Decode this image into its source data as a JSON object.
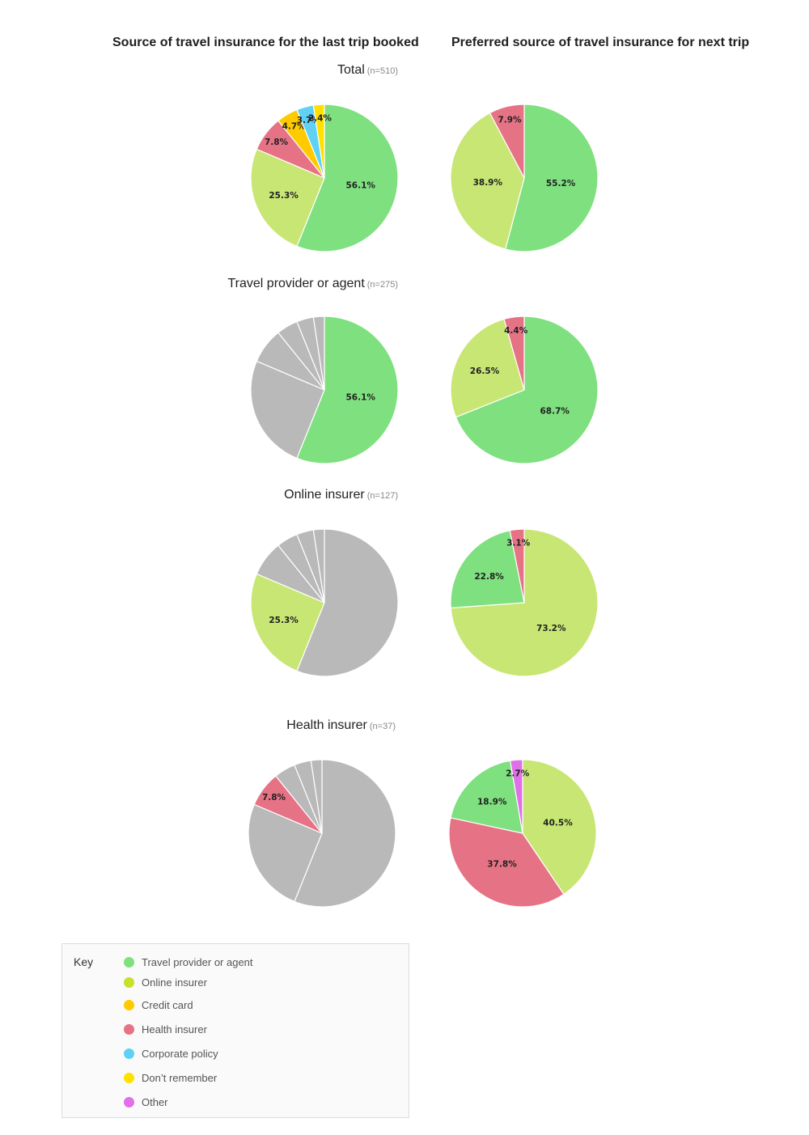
{
  "titles": {
    "left": "Source of travel insurance for the last trip booked",
    "right": "Preferred source of travel insurance for next trip"
  },
  "colors": {
    "travel_provider": "#7ee07e",
    "online_insurer": "#c8e673",
    "credit_card": "#ffcb00",
    "health_insurer": "#e67385",
    "corporate_policy": "#5fd1f5",
    "dont_remember": "#ffe100",
    "other": "#e070e8",
    "inactive": "#b9b9b9"
  },
  "groups": [
    {
      "label": "Total",
      "n": "(n=510)"
    },
    {
      "label": "Travel provider or agent",
      "n": "(n=275)"
    },
    {
      "label": "Online insurer",
      "n": "(n=127)"
    },
    {
      "label": "Health insurer",
      "n": "(n=37)"
    }
  ],
  "chart_data": [
    {
      "type": "pie",
      "chart": "Total - last trip",
      "slices": [
        {
          "category": "Travel provider or agent",
          "value": 56.1,
          "label": "56.1%",
          "color": "#7ee07e"
        },
        {
          "category": "Online insurer",
          "value": 25.3,
          "label": "25.3%",
          "color": "#c8e673"
        },
        {
          "category": "Health insurer",
          "value": 7.8,
          "label": "7.8%",
          "color": "#e67385"
        },
        {
          "category": "Credit card",
          "value": 4.7,
          "label": "4.7%",
          "color": "#ffcb00"
        },
        {
          "category": "Corporate policy",
          "value": 3.7,
          "label": "3.7%",
          "color": "#5fd1f5"
        },
        {
          "category": "Don't remember",
          "value": 2.4,
          "label": "2.4%",
          "color": "#ffe100"
        }
      ]
    },
    {
      "type": "pie",
      "chart": "Total - next trip",
      "slices": [
        {
          "category": "Travel provider or agent",
          "value": 55.2,
          "label": "55.2%",
          "color": "#7ee07e"
        },
        {
          "category": "Online insurer",
          "value": 38.9,
          "label": "38.9%",
          "color": "#c8e673"
        },
        {
          "category": "Health insurer",
          "value": 7.9,
          "label": "7.9%",
          "color": "#e67385"
        }
      ]
    },
    {
      "type": "pie",
      "chart": "Travel provider or agent - last trip",
      "slices": [
        {
          "category": "Travel provider or agent",
          "value": 56.1,
          "label": "56.1%",
          "color": "#7ee07e"
        },
        {
          "category": "Online insurer",
          "value": 25.3,
          "label": "",
          "color": "#b9b9b9"
        },
        {
          "category": "Health insurer",
          "value": 7.8,
          "label": "",
          "color": "#b9b9b9"
        },
        {
          "category": "Credit card",
          "value": 4.7,
          "label": "",
          "color": "#b9b9b9"
        },
        {
          "category": "Corporate policy",
          "value": 3.7,
          "label": "",
          "color": "#b9b9b9"
        },
        {
          "category": "Don't remember",
          "value": 2.4,
          "label": "",
          "color": "#b9b9b9"
        }
      ]
    },
    {
      "type": "pie",
      "chart": "Travel provider or agent - next trip",
      "slices": [
        {
          "category": "Travel provider or agent",
          "value": 68.7,
          "label": "68.7%",
          "color": "#7ee07e"
        },
        {
          "category": "Online insurer",
          "value": 26.5,
          "label": "26.5%",
          "color": "#c8e673"
        },
        {
          "category": "Health insurer",
          "value": 4.4,
          "label": "4.4%",
          "color": "#e67385"
        }
      ]
    },
    {
      "type": "pie",
      "chart": "Online insurer - last trip",
      "slices": [
        {
          "category": "Travel provider or agent",
          "value": 56.1,
          "label": "",
          "color": "#b9b9b9"
        },
        {
          "category": "Online insurer",
          "value": 25.3,
          "label": "25.3%",
          "color": "#c8e673"
        },
        {
          "category": "Health insurer",
          "value": 7.8,
          "label": "",
          "color": "#b9b9b9"
        },
        {
          "category": "Credit card",
          "value": 4.7,
          "label": "",
          "color": "#b9b9b9"
        },
        {
          "category": "Corporate policy",
          "value": 3.7,
          "label": "",
          "color": "#b9b9b9"
        },
        {
          "category": "Don't remember",
          "value": 2.4,
          "label": "",
          "color": "#b9b9b9"
        }
      ]
    },
    {
      "type": "pie",
      "chart": "Online insurer - next trip",
      "slices": [
        {
          "category": "Online insurer",
          "value": 73.2,
          "label": "73.2%",
          "color": "#c8e673"
        },
        {
          "category": "Travel provider or agent",
          "value": 22.8,
          "label": "22.8%",
          "color": "#7ee07e"
        },
        {
          "category": "Health insurer",
          "value": 3.1,
          "label": "3.1%",
          "color": "#e67385"
        }
      ]
    },
    {
      "type": "pie",
      "chart": "Health insurer - last trip",
      "slices": [
        {
          "category": "Travel provider or agent",
          "value": 56.1,
          "label": "",
          "color": "#b9b9b9"
        },
        {
          "category": "Online insurer",
          "value": 25.3,
          "label": "",
          "color": "#b9b9b9"
        },
        {
          "category": "Health insurer",
          "value": 7.8,
          "label": "7.8%",
          "color": "#e67385"
        },
        {
          "category": "Credit card",
          "value": 4.7,
          "label": "",
          "color": "#b9b9b9"
        },
        {
          "category": "Corporate policy",
          "value": 3.7,
          "label": "",
          "color": "#b9b9b9"
        },
        {
          "category": "Don't remember",
          "value": 2.4,
          "label": "",
          "color": "#b9b9b9"
        }
      ]
    },
    {
      "type": "pie",
      "chart": "Health insurer - next trip",
      "slices": [
        {
          "category": "Online insurer",
          "value": 40.5,
          "label": "40.5%",
          "color": "#c8e673"
        },
        {
          "category": "Health insurer",
          "value": 37.8,
          "label": "37.8%",
          "color": "#e67385"
        },
        {
          "category": "Travel provider or agent",
          "value": 18.9,
          "label": "18.9%",
          "color": "#7ee07e"
        },
        {
          "category": "Other",
          "value": 2.7,
          "label": "2.7%",
          "color": "#e070e8"
        }
      ]
    }
  ],
  "key": {
    "title": "Key",
    "items": [
      {
        "label": "Travel provider or agent",
        "color": "#7ee07e"
      },
      {
        "label": "Online insurer",
        "color": "#c8e02a"
      },
      {
        "label": "Credit card",
        "color": "#ffcb00"
      },
      {
        "label": "Health insurer",
        "color": "#e67385"
      },
      {
        "label": "Corporate policy",
        "color": "#5fd1f5"
      },
      {
        "label": "Don’t remember",
        "color": "#ffe100"
      },
      {
        "label": "Other",
        "color": "#e070e8"
      }
    ]
  }
}
